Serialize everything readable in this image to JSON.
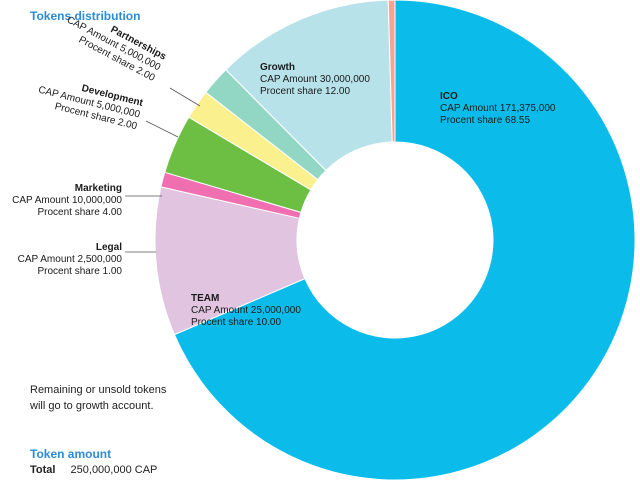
{
  "header": {
    "title": "Tokens distribution"
  },
  "note": "Remaining or unsold tokens will go to growth account.",
  "token_amount": {
    "title": "Token amount",
    "total_label": "Total",
    "total_value": "250,000,000 CAP"
  },
  "chart_data": {
    "type": "pie",
    "donut": true,
    "title": "Tokens distribution",
    "unit_prefixes": {
      "amount": "CAP Amount",
      "share": "Procent share"
    },
    "slices": [
      {
        "name": "ICO",
        "amount": "171,375,000",
        "share": "68.55",
        "value": 68.55,
        "color": "#0bbcea"
      },
      {
        "name": "TEAM",
        "amount": "25,000,000",
        "share": "10.00",
        "value": 10.0,
        "color": "#e0c4e0"
      },
      {
        "name": "Legal",
        "amount": "2,500,000",
        "share": "1.00",
        "value": 1.0,
        "color": "#f06fb0"
      },
      {
        "name": "Marketing",
        "amount": "10,000,000",
        "share": "4.00",
        "value": 4.0,
        "color": "#6dbf44"
      },
      {
        "name": "Development",
        "amount": "5,000,000",
        "share": "2.00",
        "value": 2.0,
        "color": "#faf08e"
      },
      {
        "name": "Partnerships",
        "amount": "5,000,000",
        "share": "2.00",
        "value": 2.0,
        "color": "#92d6c4"
      },
      {
        "name": "Growth",
        "amount": "30,000,000",
        "share": "12.00",
        "value": 12.0,
        "color": "#b8e2ea"
      },
      {
        "name": "",
        "amount": "",
        "share": "",
        "value": 0.45,
        "color": "#f3a593"
      }
    ]
  }
}
